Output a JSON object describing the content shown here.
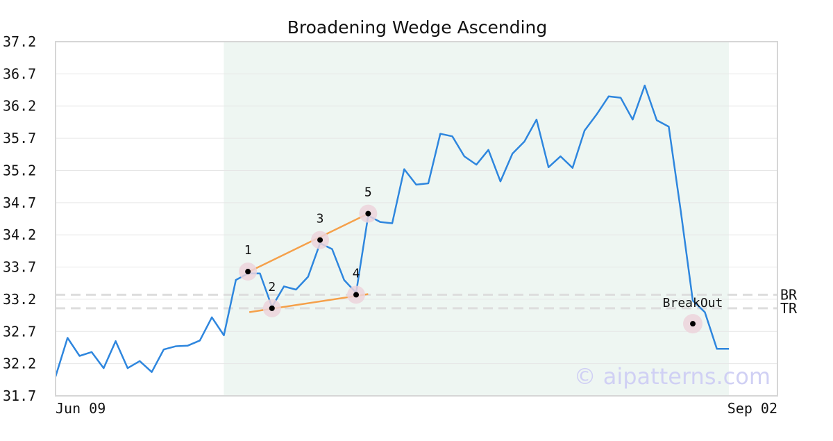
{
  "chart_data": {
    "type": "line",
    "title": "Broadening Wedge Ascending",
    "xlabel": "",
    "ylabel": "",
    "ylim": [
      31.7,
      37.2
    ],
    "yticks": [
      "37.2",
      "36.7",
      "36.2",
      "35.7",
      "35.2",
      "34.7",
      "34.2",
      "33.7",
      "33.2",
      "32.7",
      "32.2",
      "31.7"
    ],
    "xtick_labels": [
      {
        "index": 0,
        "label": "Jun 09"
      },
      {
        "index": 56,
        "label": "Sep 02"
      }
    ],
    "grid": true,
    "series": [
      {
        "color": "#2e86de",
        "values": [
          32.0,
          32.6,
          32.32,
          32.38,
          32.13,
          32.55,
          32.13,
          32.24,
          32.07,
          32.42,
          32.47,
          32.48,
          32.56,
          32.92,
          32.64,
          33.5,
          33.6,
          33.6,
          33.08,
          33.4,
          33.35,
          33.55,
          34.07,
          33.98,
          33.5,
          33.3,
          34.5,
          34.4,
          34.38,
          35.22,
          34.98,
          35.0,
          35.77,
          35.73,
          35.42,
          35.29,
          35.52,
          35.03,
          35.46,
          35.65,
          35.99,
          35.25,
          35.42,
          35.24,
          35.82,
          36.07,
          36.35,
          36.33,
          35.99,
          36.52,
          35.98,
          35.88,
          34.57,
          33.18,
          33.0,
          32.43,
          32.43
        ]
      }
    ],
    "shaded_region": {
      "start_index": 14,
      "end_index": 56,
      "color": "#eef6f2"
    },
    "pattern_points": [
      {
        "label": "1",
        "index": 16,
        "value": 33.63
      },
      {
        "label": "2",
        "index": 18,
        "value": 33.06
      },
      {
        "label": "3",
        "index": 22,
        "value": 34.12
      },
      {
        "label": "4",
        "index": 25,
        "value": 33.27
      },
      {
        "label": "5",
        "index": 26,
        "value": 34.53
      }
    ],
    "trend_lines": [
      {
        "from": {
          "index": 16,
          "value": 33.63
        },
        "to": {
          "index": 26,
          "value": 34.53
        },
        "color": "#f5a04a"
      },
      {
        "from": {
          "index": 16,
          "value": 33.0
        },
        "to": {
          "index": 26,
          "value": 33.28
        },
        "color": "#f5a04a"
      }
    ],
    "reference_lines": [
      {
        "label": "BR",
        "value": 33.27
      },
      {
        "label": "TR",
        "value": 33.06
      }
    ],
    "breakout": {
      "label": "BreakOut",
      "index": 53,
      "value": 32.82
    },
    "watermark": "© aipatterns.com",
    "colors": {
      "line": "#2e86de",
      "trend": "#f5a04a",
      "marker_halo": "#ecd4dc",
      "grid": "#e6e6e6",
      "reference": "#dddddd",
      "watermark": "#d0d0f4"
    }
  }
}
